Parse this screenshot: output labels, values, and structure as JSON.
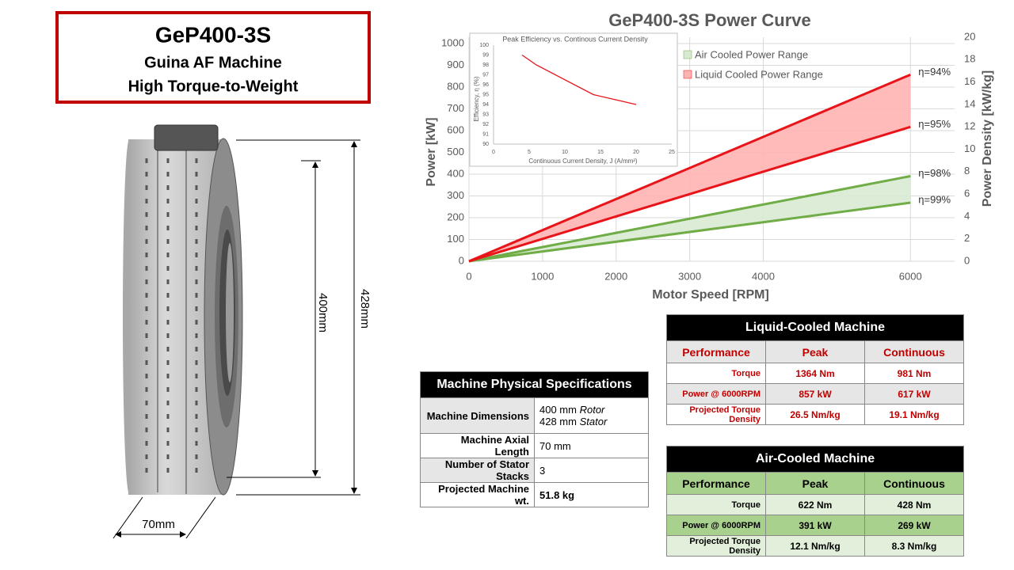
{
  "title_box": {
    "title": "GeP400-3S",
    "subtitle": "Guina AF Machine",
    "tagline": "High Torque-to-Weight"
  },
  "dimensions": {
    "rotor": "400mm",
    "stator": "428mm",
    "axial": "70mm"
  },
  "chart_data": [
    {
      "type": "range-line",
      "title": "GeP400-3S Power Curve",
      "x_label": "Motor Speed [RPM]",
      "y_label": "Power [kW]",
      "y2_label": "Power Density [kW/kg]",
      "x": [
        0,
        6000
      ],
      "xlim": [
        0,
        6600
      ],
      "xticks": [
        0,
        1000,
        2000,
        3000,
        4000,
        6000
      ],
      "ylim": [
        0,
        1000
      ],
      "yticks": [
        0,
        100,
        200,
        300,
        400,
        500,
        600,
        700,
        800,
        900,
        1000
      ],
      "y2lim": [
        0,
        20
      ],
      "y2ticks": [
        0,
        2,
        4,
        6,
        8,
        10,
        12,
        14,
        16,
        18,
        20
      ],
      "grid": true,
      "legend": "top-right",
      "ranges": [
        {
          "name": "Air Cooled Power Range",
          "line_color": "#70ad47",
          "fill_color": "#d9ead3",
          "upper": {
            "values": [
              0,
              391
            ],
            "label": "η=98%"
          },
          "lower": {
            "values": [
              0,
              269
            ],
            "label": "η=99%"
          }
        },
        {
          "name": "Liquid Cooled Power Range",
          "line_color": "#e8141a",
          "fill_color": "#ffb3b3",
          "upper": {
            "values": [
              0,
              857
            ],
            "label": "η=94%"
          },
          "lower": {
            "values": [
              0,
              617
            ],
            "label": "η=95%"
          }
        }
      ]
    },
    {
      "type": "line",
      "title": "Peak Efficiency vs. Continous Current Density",
      "x_label": "Continuous Current Density, J (A/mm²)",
      "y_label": "Efficiency, η (%)",
      "x": [
        4,
        6,
        14,
        20
      ],
      "values": [
        99,
        98,
        95,
        94
      ],
      "color": "#e8141a",
      "xlim": [
        0,
        25
      ],
      "xticks": [
        0,
        5,
        10,
        15,
        20,
        25
      ],
      "ylim": [
        90,
        100
      ],
      "yticks": [
        90,
        91,
        92,
        93,
        94,
        95,
        96,
        97,
        98,
        99,
        100
      ],
      "grid": false
    }
  ],
  "specs_table": {
    "title": "Machine Physical Specifications",
    "rows": [
      {
        "label": "Machine Dimensions",
        "values": [
          {
            "value": "400 mm",
            "note": "Rotor"
          },
          {
            "value": "428 mm",
            "note": "Stator"
          }
        ]
      },
      {
        "label": "Machine Axial Length",
        "value": "70 mm"
      },
      {
        "label": "Number of Stator Stacks",
        "value": "3"
      },
      {
        "label": "Projected Machine wt.",
        "value": "51.8  kg"
      }
    ]
  },
  "liquid_table": {
    "title": "Liquid-Cooled Machine",
    "header": [
      "Performance",
      "Peak",
      "Continuous"
    ],
    "rows": [
      [
        "Torque",
        "1364 Nm",
        "981 Nm"
      ],
      [
        "Power @ 6000RPM",
        "857 kW",
        "617 kW"
      ],
      [
        "Projected Torque Density",
        "26.5 Nm/kg",
        "19.1 Nm/kg"
      ]
    ]
  },
  "air_table": {
    "title": "Air-Cooled Machine",
    "header": [
      "Performance",
      "Peak",
      "Continuous"
    ],
    "rows": [
      [
        "Torque",
        "622 Nm",
        "428 Nm"
      ],
      [
        "Power @ 6000RPM",
        "391 kW",
        "269 kW"
      ],
      [
        "Projected Torque Density",
        "12.1 Nm/kg",
        "8.3 Nm/kg"
      ]
    ]
  }
}
